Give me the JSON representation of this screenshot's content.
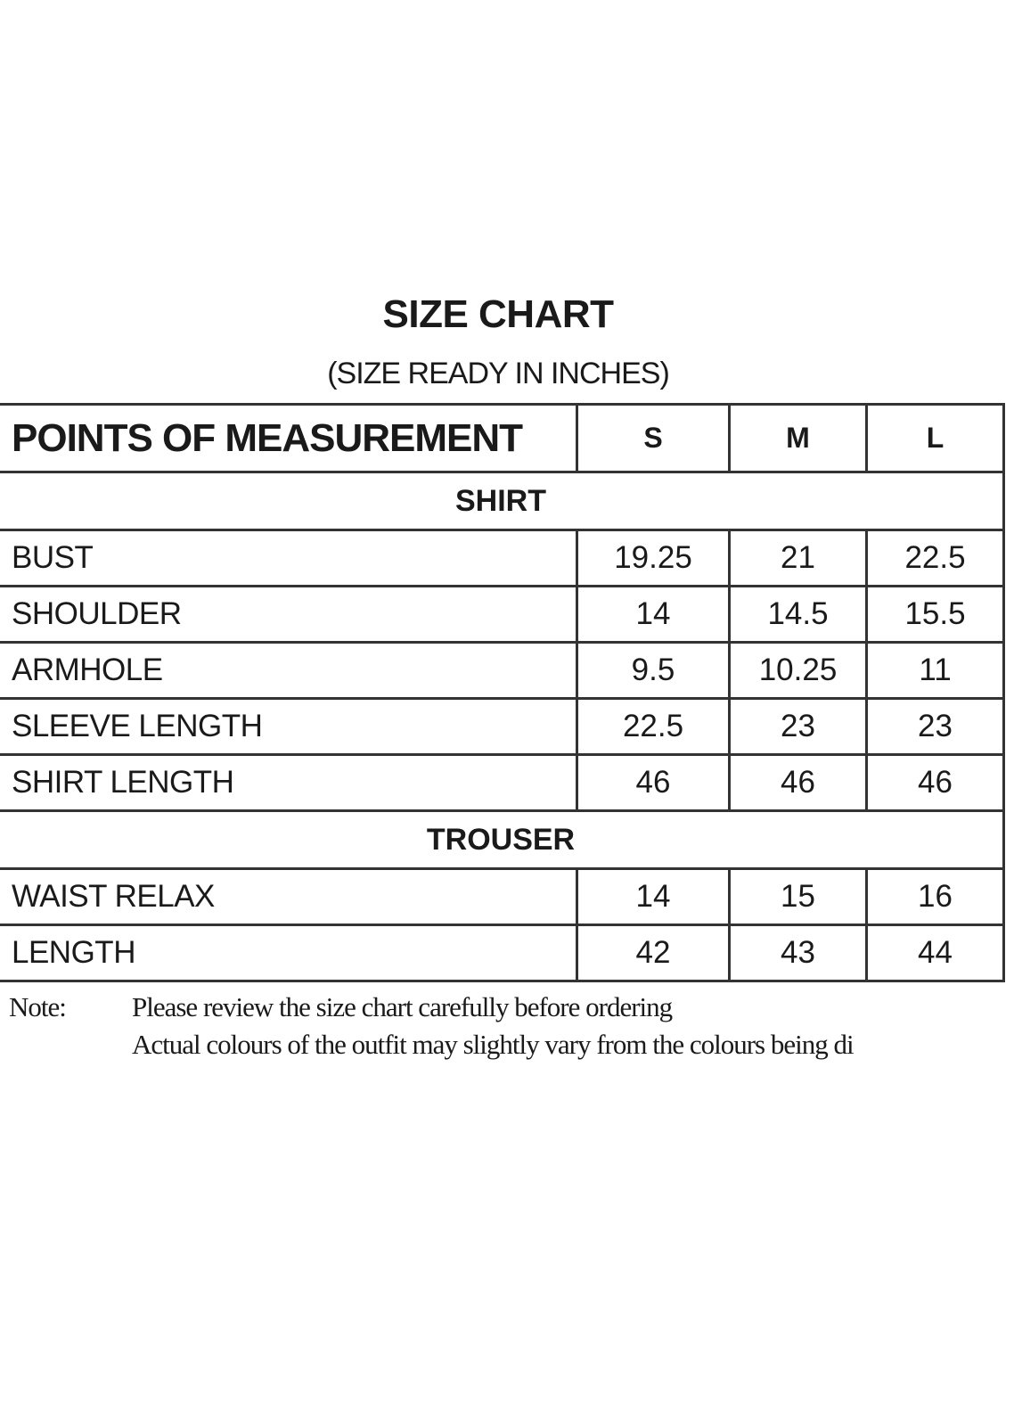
{
  "title": "SIZE CHART",
  "subtitle": "(SIZE READY IN INCHES)",
  "table": {
    "header": [
      "POINTS OF MEASUREMENT",
      "S",
      "M",
      "L"
    ],
    "sections": [
      {
        "name": "SHIRT",
        "rows": [
          {
            "label": "BUST",
            "values": [
              "19.25",
              "21",
              "22.5"
            ]
          },
          {
            "label": "SHOULDER",
            "values": [
              "14",
              "14.5",
              "15.5"
            ]
          },
          {
            "label": "ARMHOLE",
            "values": [
              "9.5",
              "10.25",
              "11"
            ]
          },
          {
            "label": "SLEEVE LENGTH",
            "values": [
              "22.5",
              "23",
              "23"
            ]
          },
          {
            "label": "SHIRT LENGTH",
            "values": [
              "46",
              "46",
              "46"
            ]
          }
        ]
      },
      {
        "name": "TROUSER",
        "rows": [
          {
            "label": "WAIST RELAX",
            "values": [
              "14",
              "15",
              "16"
            ]
          },
          {
            "label": "LENGTH",
            "values": [
              "42",
              "43",
              "44"
            ]
          }
        ]
      }
    ]
  },
  "note": {
    "label": "Note:",
    "lines": [
      "Please review the size chart carefully before ordering",
      "Actual colours of the outfit may slightly vary from the colours being di"
    ]
  }
}
